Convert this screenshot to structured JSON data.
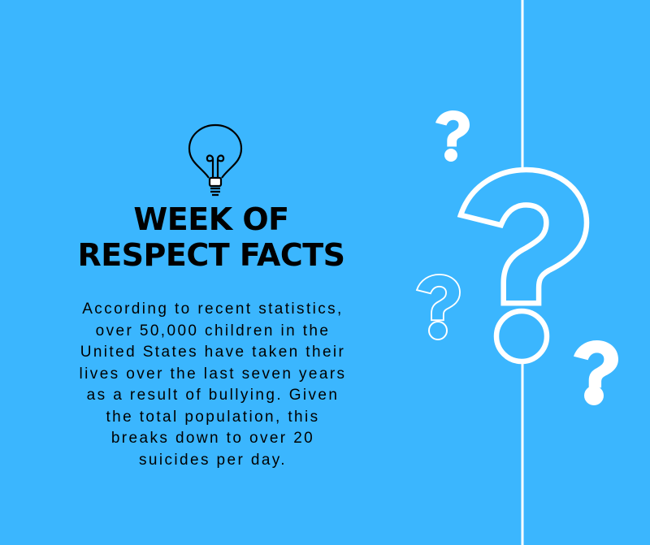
{
  "background_color": "#3bb6fe",
  "accent_color": "#ffffff",
  "title": {
    "line1": "WEEK OF",
    "line2": "RESPECT FACTS"
  },
  "body_lines": [
    "According to recent statistics,",
    "over 50,000 children in the",
    "United States have taken their",
    "lives over the last seven years",
    "as a result of bullying. Given",
    "the total population, this",
    "breaks down to over 20",
    "suicides per day."
  ],
  "icons": [
    "lightbulb-icon",
    "question-mark-icon"
  ]
}
